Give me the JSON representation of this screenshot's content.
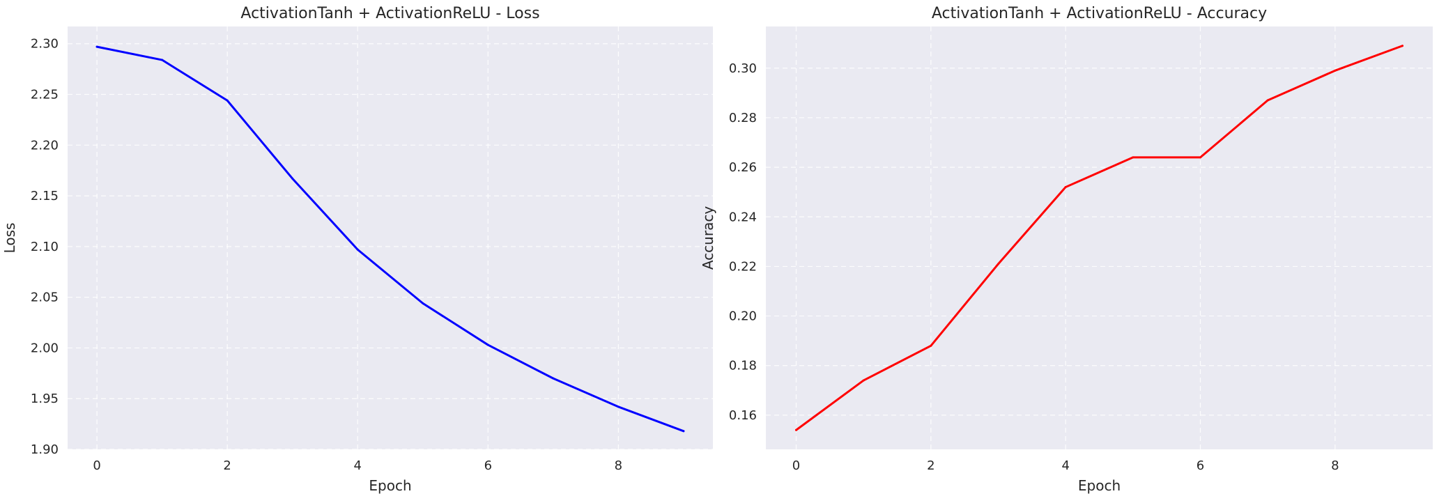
{
  "chart_data": [
    {
      "type": "line",
      "title": "ActivationTanh + ActivationReLU - Loss",
      "xlabel": "Epoch",
      "ylabel": "Loss",
      "x": [
        0,
        1,
        2,
        3,
        4,
        5,
        6,
        7,
        8,
        9
      ],
      "series": [
        {
          "color": "#0000ff",
          "values": [
            2.297,
            2.284,
            2.244,
            2.167,
            2.097,
            2.044,
            2.003,
            1.97,
            1.942,
            1.918
          ]
        }
      ],
      "xlim": [
        -0.45,
        9.45
      ],
      "ylim": [
        1.9,
        2.317
      ],
      "xticks": [
        0,
        2,
        4,
        6,
        8
      ],
      "yticks": [
        1.9,
        1.95,
        2.0,
        2.05,
        2.1,
        2.15,
        2.2,
        2.25,
        2.3
      ],
      "ytick_decimals": 2,
      "grid": true,
      "background": "#eaeaf2"
    },
    {
      "type": "line",
      "title": "ActivationTanh + ActivationReLU - Accuracy",
      "xlabel": "Epoch",
      "ylabel": "Accuracy",
      "x": [
        0,
        1,
        2,
        3,
        4,
        5,
        6,
        7,
        8,
        9
      ],
      "series": [
        {
          "color": "#ff0000",
          "values": [
            0.154,
            0.174,
            0.188,
            0.221,
            0.252,
            0.264,
            0.264,
            0.287,
            0.299,
            0.309
          ]
        }
      ],
      "xlim": [
        -0.45,
        9.45
      ],
      "ylim": [
        0.1462,
        0.3168
      ],
      "xticks": [
        0,
        2,
        4,
        6,
        8
      ],
      "yticks": [
        0.16,
        0.18,
        0.2,
        0.22,
        0.24,
        0.26,
        0.28,
        0.3
      ],
      "ytick_decimals": 2,
      "grid": true,
      "background": "#eaeaf2"
    }
  ]
}
